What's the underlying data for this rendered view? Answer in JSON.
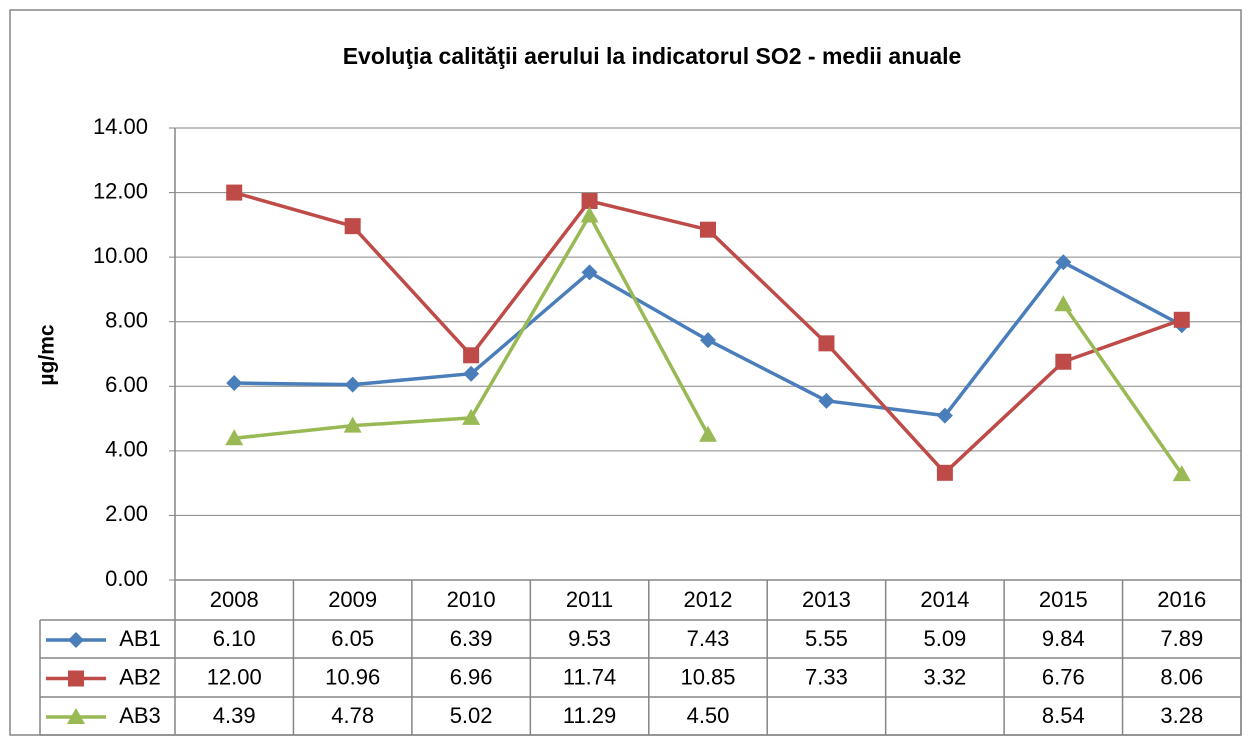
{
  "chart_data": {
    "type": "line",
    "title": "Evoluţia calităţii aerului la indicatorul SO2 - medii anuale",
    "y_label": "µg/mc",
    "categories": [
      "2008",
      "2009",
      "2010",
      "2011",
      "2012",
      "2013",
      "2014",
      "2015",
      "2016"
    ],
    "series": [
      {
        "name": "AB1",
        "color": "#4a7ebb",
        "marker": "diamond",
        "values": [
          6.1,
          6.05,
          6.39,
          9.53,
          7.43,
          5.55,
          5.09,
          9.84,
          7.89
        ],
        "value_labels": [
          "6.10",
          "6.05",
          "6.39",
          "9.53",
          "7.43",
          "5.55",
          "5.09",
          "9.84",
          "7.89"
        ]
      },
      {
        "name": "AB2",
        "color": "#be4b48",
        "marker": "square",
        "values": [
          12,
          10.96,
          6.96,
          11.74,
          10.85,
          7.33,
          3.32,
          6.76,
          8.06
        ],
        "value_labels": [
          "12.00",
          "10.96",
          "6.96",
          "11.74",
          "10.85",
          "7.33",
          "3.32",
          "6.76",
          "8.06"
        ]
      },
      {
        "name": "AB3",
        "color": "#98b954",
        "marker": "triangle",
        "values": [
          4.39,
          4.78,
          5.02,
          11.29,
          4.5,
          null,
          null,
          8.54,
          3.28
        ],
        "value_labels": [
          "4.39",
          "4.78",
          "5.02",
          "11.29",
          "4.50",
          null,
          null,
          "8.54",
          "3.28"
        ]
      }
    ],
    "ylim": [
      0,
      14
    ],
    "yticks": [
      {
        "value": 0,
        "label": "0.00"
      },
      {
        "value": 2,
        "label": "2.00"
      },
      {
        "value": 4,
        "label": "4.00"
      },
      {
        "value": 6,
        "label": "6.00"
      },
      {
        "value": 8,
        "label": "8.00"
      },
      {
        "value": 10,
        "label": "10.00"
      },
      {
        "value": 12,
        "label": "12.00"
      },
      {
        "value": 14,
        "label": "14.00"
      }
    ],
    "grid": true
  }
}
